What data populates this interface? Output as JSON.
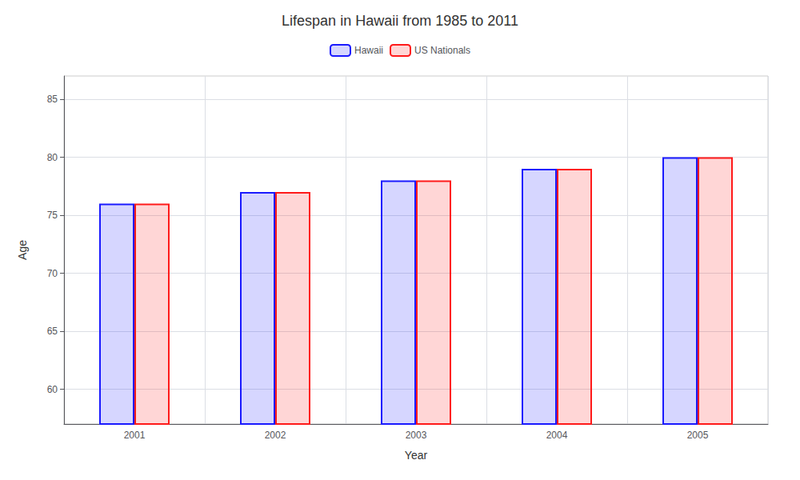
{
  "chart_data": {
    "type": "bar",
    "title": "Lifespan in Hawaii from 1985 to 2011",
    "xlabel": "Year",
    "ylabel": "Age",
    "categories": [
      "2001",
      "2002",
      "2003",
      "2004",
      "2005"
    ],
    "series": [
      {
        "name": "Hawaii",
        "color": "#1a1aff",
        "values": [
          76,
          77,
          78,
          79,
          80
        ]
      },
      {
        "name": "US Nationals",
        "color": "#ff1a1a",
        "values": [
          76,
          77,
          78,
          79,
          80
        ]
      }
    ],
    "ylim": [
      57,
      87
    ],
    "yticks": [
      60,
      65,
      70,
      75,
      80,
      85
    ],
    "grid": true,
    "legend": "top"
  }
}
